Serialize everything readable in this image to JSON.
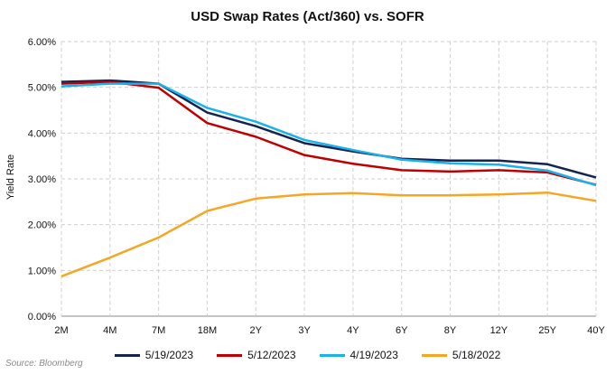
{
  "chart_data": {
    "type": "line",
    "title": "USD Swap Rates (Act/360) vs. SOFR",
    "xlabel": "",
    "ylabel": "Yield Rate",
    "categories": [
      "2M",
      "4M",
      "7M",
      "18M",
      "2Y",
      "3Y",
      "4Y",
      "6Y",
      "8Y",
      "12Y",
      "25Y",
      "40Y"
    ],
    "ylim": [
      0,
      6
    ],
    "yticks": [
      "0.00%",
      "1.00%",
      "2.00%",
      "3.00%",
      "4.00%",
      "5.00%",
      "6.00%"
    ],
    "grid": true,
    "legend_position": "bottom",
    "series": [
      {
        "name": "5/19/2023",
        "color": "#14234f",
        "values": [
          5.12,
          5.15,
          5.08,
          4.45,
          4.15,
          3.78,
          3.6,
          3.44,
          3.4,
          3.4,
          3.32,
          3.03
        ]
      },
      {
        "name": "5/12/2023",
        "color": "#c00000",
        "values": [
          5.08,
          5.12,
          4.99,
          4.22,
          3.92,
          3.52,
          3.33,
          3.19,
          3.16,
          3.19,
          3.14,
          2.87
        ]
      },
      {
        "name": "4/19/2023",
        "color": "#1ab2e8",
        "values": [
          5.02,
          5.08,
          5.08,
          4.55,
          4.25,
          3.85,
          3.63,
          3.42,
          3.34,
          3.31,
          3.18,
          2.86
        ]
      },
      {
        "name": "5/18/2022",
        "color": "#f5a623",
        "values": [
          0.87,
          1.28,
          1.72,
          2.3,
          2.57,
          2.66,
          2.69,
          2.64,
          2.64,
          2.66,
          2.7,
          2.52
        ]
      }
    ]
  },
  "source": "Source: Bloomberg"
}
